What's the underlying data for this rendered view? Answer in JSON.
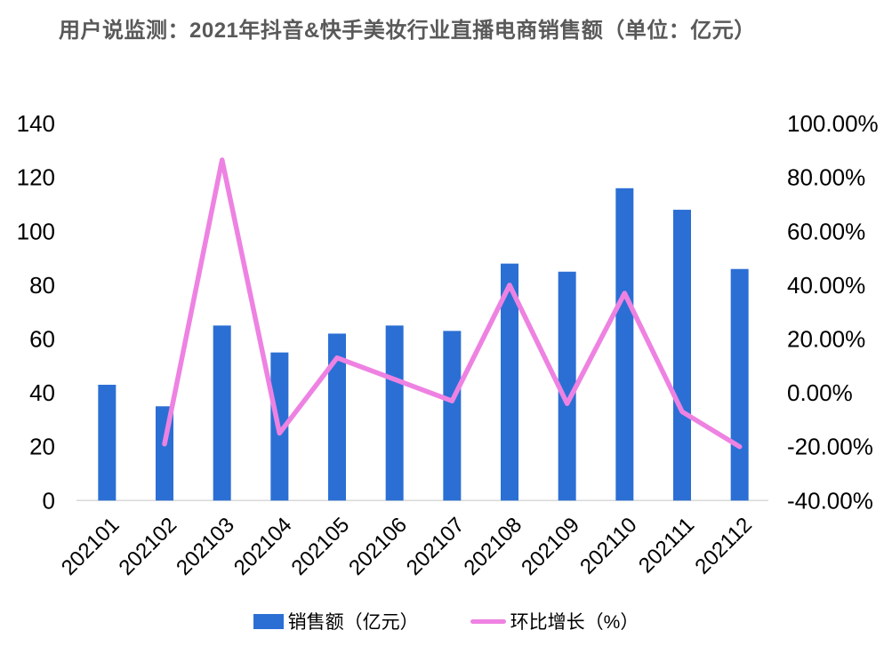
{
  "title": "用户说监测：2021年抖音&快手美妆行业直播电商销售额（单位：亿元）",
  "chart_data": {
    "type": "combo-bar-line",
    "categories": [
      "202101",
      "202102",
      "202103",
      "202104",
      "202105",
      "202106",
      "202107",
      "202108",
      "202109",
      "202110",
      "202111",
      "202112"
    ],
    "series": [
      {
        "name": "销售额（亿元）",
        "type": "bar",
        "axis": "left",
        "color": "#2B6FD4",
        "values": [
          43,
          35,
          65,
          55,
          62,
          65,
          63,
          88,
          85,
          116,
          108,
          86
        ]
      },
      {
        "name": "环比增长（%）",
        "type": "line",
        "axis": "right",
        "color": "#EE82E2",
        "values": [
          null,
          -19,
          86.5,
          -15,
          13,
          5,
          -3,
          40,
          -4,
          37,
          -7,
          -20
        ]
      }
    ],
    "left_axis": {
      "min": 0,
      "max": 140,
      "step": 20,
      "tick_labels": [
        "140",
        "120",
        "100",
        "80",
        "60",
        "40",
        "20",
        "0"
      ]
    },
    "right_axis": {
      "min": -40,
      "max": 100,
      "step": 20,
      "tick_labels": [
        "100.00%",
        "80.00%",
        "60.00%",
        "40.00%",
        "20.00%",
        "0.00%",
        "-20.00%",
        "-40.00%"
      ]
    },
    "grid": false,
    "legend_position": "bottom",
    "axis_line_color": "#D9D9D9",
    "title_color": "#595959"
  }
}
